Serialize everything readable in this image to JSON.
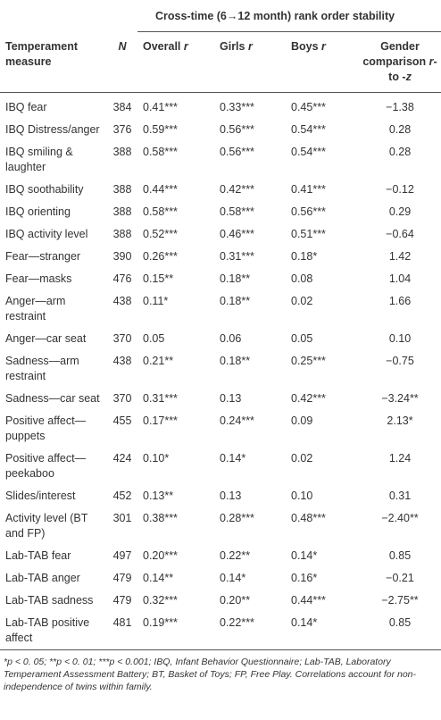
{
  "table": {
    "span_header": "Cross-time (6→12 month) rank order stability",
    "columns": [
      [
        "Temperament measure"
      ],
      [
        "N"
      ],
      [
        "Overall ",
        "r"
      ],
      [
        "Girls ",
        "r"
      ],
      [
        "Boys ",
        "r"
      ],
      [
        "Gender comparison ",
        "r",
        "- to -",
        "z"
      ]
    ],
    "rows": [
      [
        "IBQ fear",
        "384",
        "0.41***",
        "0.33***",
        "0.45***",
        "−1.38"
      ],
      [
        "IBQ Distress/anger",
        "376",
        "0.59***",
        "0.56***",
        "0.54***",
        "0.28"
      ],
      [
        "IBQ smiling & laughter",
        "388",
        "0.58***",
        "0.56***",
        "0.54***",
        "0.28"
      ],
      [
        "IBQ soothability",
        "388",
        "0.44***",
        "0.42***",
        "0.41***",
        "−0.12"
      ],
      [
        "IBQ orienting",
        "388",
        "0.58***",
        "0.58***",
        "0.56***",
        "0.29"
      ],
      [
        "IBQ activity level",
        "388",
        "0.52***",
        "0.46***",
        "0.51***",
        "−0.64"
      ],
      [
        "Fear—stranger",
        "390",
        "0.26***",
        "0.31***",
        "0.18*",
        "1.42"
      ],
      [
        "Fear—masks",
        "476",
        "0.15**",
        "0.18**",
        "0.08",
        "1.04"
      ],
      [
        "Anger—arm restraint",
        "438",
        "0.11*",
        "0.18**",
        "0.02",
        "1.66"
      ],
      [
        "Anger—car seat",
        "370",
        "0.05",
        "0.06",
        "0.05",
        "0.10"
      ],
      [
        "Sadness—arm restraint",
        "438",
        "0.21**",
        "0.18**",
        "0.25***",
        "−0.75"
      ],
      [
        "Sadness—car seat",
        "370",
        "0.31***",
        "0.13",
        "0.42***",
        "−3.24**"
      ],
      [
        "Positive affect—puppets",
        "455",
        "0.17***",
        "0.24***",
        "0.09",
        "2.13*"
      ],
      [
        "Positive affect—peekaboo",
        "424",
        "0.10*",
        "0.14*",
        "0.02",
        "1.24"
      ],
      [
        "Slides/interest",
        "452",
        "0.13**",
        "0.13",
        "0.10",
        "0.31"
      ],
      [
        "Activity level (BT and FP)",
        "301",
        "0.38***",
        "0.28***",
        "0.48***",
        "−2.40**"
      ],
      [
        "Lab-TAB fear",
        "497",
        "0.20***",
        "0.22**",
        "0.14*",
        "0.85"
      ],
      [
        "Lab-TAB anger",
        "479",
        "0.14**",
        "0.14*",
        "0.16*",
        "−0.21"
      ],
      [
        "Lab-TAB sadness",
        "479",
        "0.32***",
        "0.20**",
        "0.44***",
        "−2.75**"
      ],
      [
        "Lab-TAB positive affect",
        "481",
        "0.19***",
        "0.22***",
        "0.14*",
        "0.85"
      ]
    ],
    "footnote": "*p < 0. 05; **p < 0. 01; ***p < 0.001; IBQ, Infant Behavior Questionnaire; Lab-TAB, Laboratory Temperament Assessment Battery; BT, Basket of Toys; FP, Free Play. Correlations account for non-independence of twins within family."
  }
}
